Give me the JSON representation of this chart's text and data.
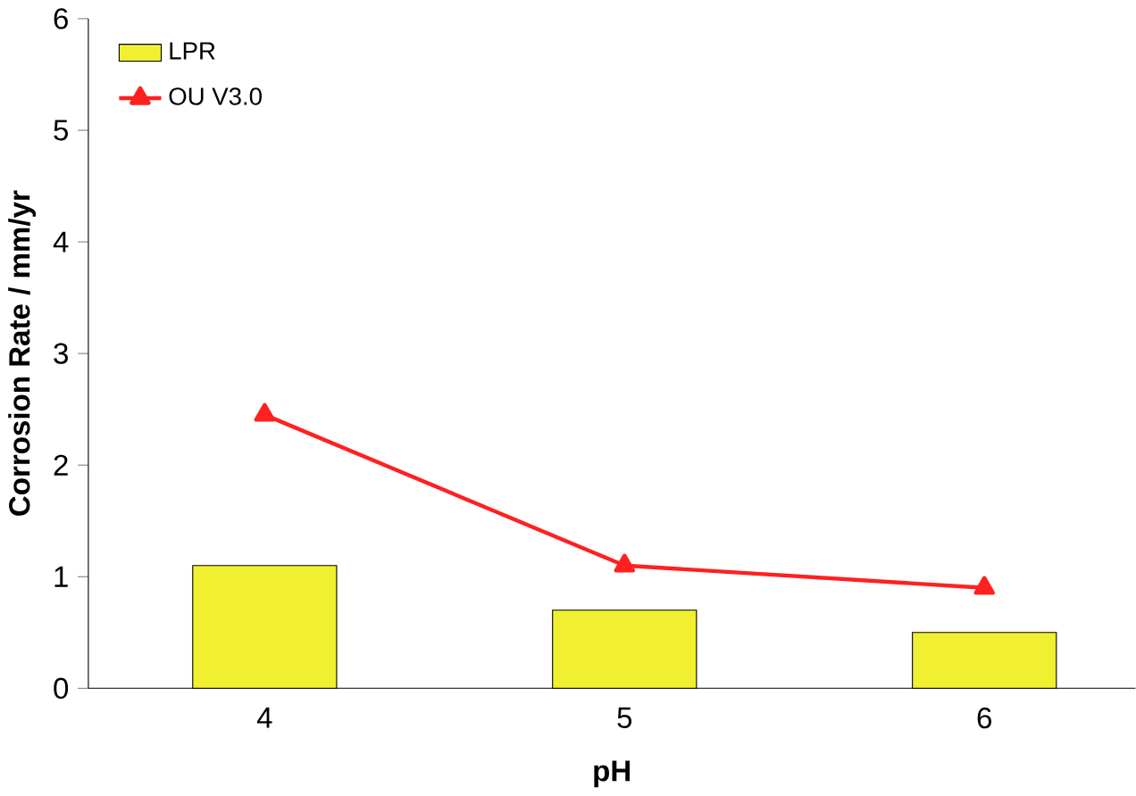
{
  "chart_data": {
    "type": "bar",
    "xlabel": "pH",
    "ylabel": "Corrosion Rate / mm/yr",
    "categories": [
      "4",
      "5",
      "6"
    ],
    "series": [
      {
        "name": "LPR",
        "color": "#f0f030",
        "values": [
          1.1,
          0.7,
          0.5
        ]
      },
      {
        "name": "OU V3.0",
        "type": "line",
        "color": "#ff2020",
        "marker": "triangle",
        "line_style": "solid",
        "values": [
          2.45,
          1.1,
          0.9
        ]
      }
    ],
    "ylim": [
      0,
      6
    ],
    "yticks": [
      0,
      1,
      2,
      3,
      4,
      5,
      6
    ],
    "grid": false,
    "legend": "top left"
  }
}
